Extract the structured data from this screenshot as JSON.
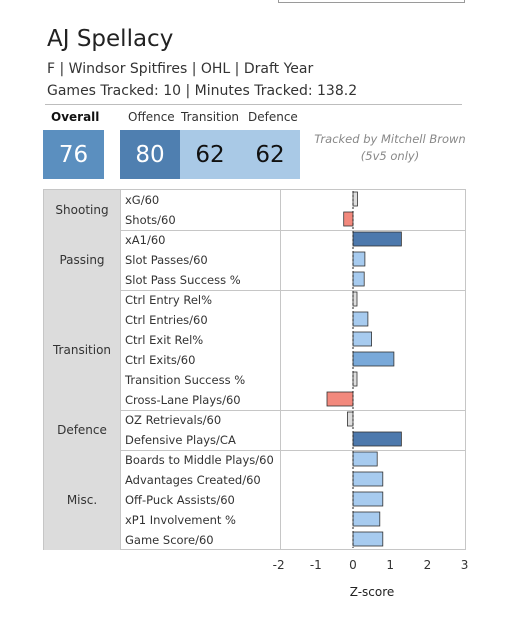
{
  "header": {
    "player_name": "AJ Spellacy",
    "subtitle": "F | Windsor Spitfires | OHL | Draft Year",
    "tracked_line": "Games Tracked: 10 | Minutes Tracked: 138.2"
  },
  "scores": {
    "overall_label": "Overall",
    "overall_value": "76",
    "offence_label": "Offence",
    "offence_value": "80",
    "transition_label": "Transition",
    "transition_value": "62",
    "defence_label": "Defence",
    "defence_value": "62"
  },
  "note": {
    "line1": "Tracked by Mitchell Brown",
    "line2": "(5v5 only)"
  },
  "colors": {
    "overall_box": "#5b8fbf",
    "offence_box": "#4f7fb0",
    "transition_box": "#a9c9e6",
    "defence_box": "#a9c9e6",
    "bar_high": "#4d79ad",
    "bar_mid": "#79a9d9",
    "bar_light": "#a7cbef",
    "bar_negative": "#f2897d",
    "bar_near_zero": "#dedede"
  },
  "chart_data": {
    "type": "bar",
    "orientation": "horizontal",
    "xlabel": "Z-score",
    "xlim": [
      -2.3,
      3.0
    ],
    "x_ticks": [
      "-2",
      "-1",
      "0",
      "1",
      "2",
      "3"
    ],
    "groups": [
      {
        "name": "Shooting",
        "metrics": [
          {
            "label": "xG/60",
            "value": 0.12
          },
          {
            "label": "Shots/60",
            "value": -0.25
          }
        ]
      },
      {
        "name": "Passing",
        "metrics": [
          {
            "label": "xA1/60",
            "value": 1.3
          },
          {
            "label": "Slot Passes/60",
            "value": 0.32
          },
          {
            "label": "Slot Pass Success %",
            "value": 0.3
          }
        ]
      },
      {
        "name": "Transition",
        "metrics": [
          {
            "label": "Ctrl Entry Rel%",
            "value": 0.03
          },
          {
            "label": "Ctrl Entries/60",
            "value": 0.4
          },
          {
            "label": "Ctrl Exit Rel%",
            "value": 0.5
          },
          {
            "label": "Ctrl Exits/60",
            "value": 1.1
          },
          {
            "label": "Transition Success %",
            "value": 0.0
          },
          {
            "label": "Cross-Lane Plays/60",
            "value": -0.7
          }
        ]
      },
      {
        "name": "Defence",
        "metrics": [
          {
            "label": "OZ Retrievals/60",
            "value": -0.15
          },
          {
            "label": "Defensive Plays/CA",
            "value": 1.3
          }
        ]
      },
      {
        "name": "Misc.",
        "metrics": [
          {
            "label": "Boards to Middle Plays/60",
            "value": 0.65
          },
          {
            "label": "Advantages Created/60",
            "value": 0.8
          },
          {
            "label": "Off-Puck Assists/60",
            "value": 0.8
          },
          {
            "label": "xP1 Involvement %",
            "value": 0.72
          },
          {
            "label": "Game Score/60",
            "value": 0.8
          }
        ]
      }
    ]
  }
}
